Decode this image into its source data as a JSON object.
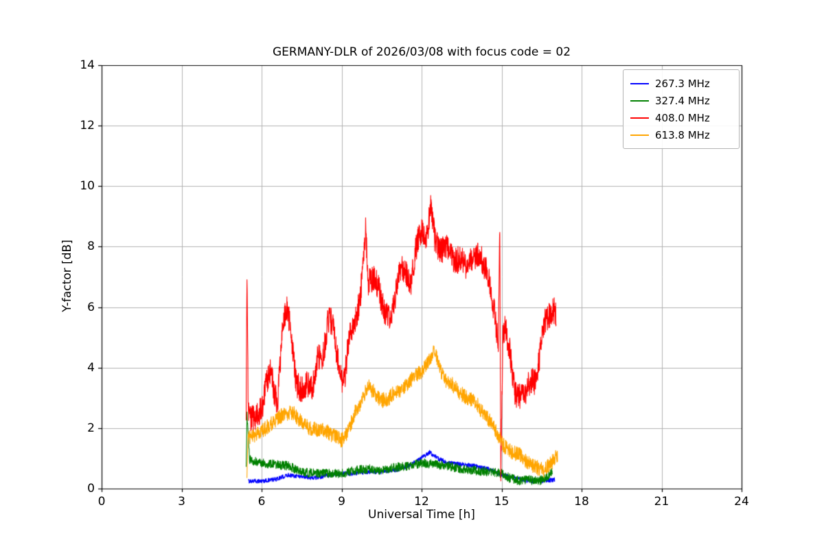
{
  "chart_data": {
    "type": "line",
    "title": "GERMANY-DLR of 2026/03/08 with focus code = 02",
    "xlabel": "Universal Time [h]",
    "ylabel": "Y-factor [dB]",
    "xlim": [
      0,
      24
    ],
    "ylim": [
      0,
      14
    ],
    "xticks": [
      0,
      3,
      6,
      9,
      12,
      15,
      18,
      21,
      24
    ],
    "yticks": [
      0,
      2,
      4,
      6,
      8,
      10,
      12,
      14
    ],
    "grid": true,
    "grid_color": "#b0b0b0",
    "legend_position": "upper right",
    "series": [
      {
        "name": "267.3 MHz",
        "color": "#0000ff",
        "noise": 0.07,
        "points": [
          [
            5.5,
            0.25
          ],
          [
            6,
            0.25
          ],
          [
            6.5,
            0.3
          ],
          [
            7,
            0.45
          ],
          [
            7.5,
            0.4
          ],
          [
            8,
            0.35
          ],
          [
            8.5,
            0.45
          ],
          [
            9,
            0.5
          ],
          [
            9.5,
            0.5
          ],
          [
            10,
            0.55
          ],
          [
            10.5,
            0.55
          ],
          [
            11,
            0.6
          ],
          [
            11.5,
            0.75
          ],
          [
            11.9,
            0.95
          ],
          [
            12.3,
            1.2
          ],
          [
            12.6,
            1.0
          ],
          [
            13,
            0.85
          ],
          [
            13.5,
            0.8
          ],
          [
            14,
            0.75
          ],
          [
            14.5,
            0.65
          ],
          [
            15,
            0.45
          ],
          [
            15.5,
            0.35
          ],
          [
            16,
            0.25
          ],
          [
            16.5,
            0.25
          ],
          [
            17,
            0.3
          ]
        ]
      },
      {
        "name": "327.4 MHz",
        "color": "#008000",
        "noise": 0.15,
        "points": [
          [
            5.42,
            0.6
          ],
          [
            5.45,
            2.45
          ],
          [
            5.55,
            0.95
          ],
          [
            6,
            0.85
          ],
          [
            6.5,
            0.8
          ],
          [
            7,
            0.75
          ],
          [
            7.5,
            0.55
          ],
          [
            8,
            0.5
          ],
          [
            8.5,
            0.5
          ],
          [
            9,
            0.5
          ],
          [
            9.5,
            0.6
          ],
          [
            10,
            0.65
          ],
          [
            10.5,
            0.6
          ],
          [
            11,
            0.7
          ],
          [
            11.5,
            0.75
          ],
          [
            12,
            0.85
          ],
          [
            12.5,
            0.8
          ],
          [
            13,
            0.75
          ],
          [
            13.5,
            0.65
          ],
          [
            14,
            0.6
          ],
          [
            14.5,
            0.55
          ],
          [
            15,
            0.5
          ],
          [
            15.3,
            0.35
          ],
          [
            15.7,
            0.25
          ],
          [
            16,
            0.3
          ],
          [
            16.3,
            0.25
          ],
          [
            16.6,
            0.3
          ],
          [
            16.9,
            0.55
          ]
        ]
      },
      {
        "name": "408.0 MHz",
        "color": "#ff0000",
        "noise": 0.45,
        "points": [
          [
            5.42,
            2.3
          ],
          [
            5.45,
            7.3
          ],
          [
            5.5,
            2.4
          ],
          [
            5.7,
            2.3
          ],
          [
            6,
            2.6
          ],
          [
            6.2,
            3.6
          ],
          [
            6.35,
            3.9
          ],
          [
            6.5,
            3.0
          ],
          [
            6.6,
            2.9
          ],
          [
            6.8,
            5.4
          ],
          [
            6.95,
            6.0
          ],
          [
            7.1,
            5.2
          ],
          [
            7.3,
            3.4
          ],
          [
            7.5,
            3.3
          ],
          [
            7.7,
            3.5
          ],
          [
            7.9,
            3.3
          ],
          [
            8.1,
            4.4
          ],
          [
            8.3,
            4.3
          ],
          [
            8.5,
            5.6
          ],
          [
            8.65,
            5.5
          ],
          [
            8.8,
            4.6
          ],
          [
            9.0,
            3.6
          ],
          [
            9.1,
            3.5
          ],
          [
            9.3,
            5.2
          ],
          [
            9.5,
            5.5
          ],
          [
            9.7,
            6.3
          ],
          [
            9.9,
            8.6
          ],
          [
            10.0,
            6.8
          ],
          [
            10.2,
            7.0
          ],
          [
            10.4,
            6.6
          ],
          [
            10.6,
            5.8
          ],
          [
            10.8,
            5.6
          ],
          [
            11.0,
            6.3
          ],
          [
            11.2,
            7.3
          ],
          [
            11.4,
            7.2
          ],
          [
            11.6,
            6.8
          ],
          [
            11.8,
            8.0
          ],
          [
            12.0,
            8.6
          ],
          [
            12.2,
            8.3
          ],
          [
            12.35,
            9.5
          ],
          [
            12.5,
            8.2
          ],
          [
            12.7,
            7.8
          ],
          [
            12.9,
            8.1
          ],
          [
            13.1,
            7.7
          ],
          [
            13.3,
            7.5
          ],
          [
            13.5,
            7.7
          ],
          [
            13.7,
            7.3
          ],
          [
            13.9,
            7.6
          ],
          [
            14.1,
            7.8
          ],
          [
            14.3,
            7.5
          ],
          [
            14.5,
            7.0
          ],
          [
            14.7,
            6.0
          ],
          [
            14.88,
            4.8
          ],
          [
            14.93,
            8.6
          ],
          [
            14.97,
            0.4
          ],
          [
            15.05,
            5.2
          ],
          [
            15.15,
            5.3
          ],
          [
            15.3,
            4.6
          ],
          [
            15.5,
            3.1
          ],
          [
            15.7,
            3.0
          ],
          [
            15.9,
            3.2
          ],
          [
            16.1,
            3.6
          ],
          [
            16.3,
            3.5
          ],
          [
            16.5,
            4.9
          ],
          [
            16.6,
            5.5
          ],
          [
            16.8,
            5.7
          ],
          [
            16.95,
            5.9
          ],
          [
            17.05,
            5.8
          ]
        ]
      },
      {
        "name": "613.8 MHz",
        "color": "#ffa500",
        "noise": 0.25,
        "points": [
          [
            5.45,
            0.4
          ],
          [
            5.5,
            1.7
          ],
          [
            5.7,
            1.75
          ],
          [
            6,
            1.9
          ],
          [
            6.3,
            2.1
          ],
          [
            6.6,
            2.3
          ],
          [
            6.9,
            2.5
          ],
          [
            7.2,
            2.5
          ],
          [
            7.5,
            2.2
          ],
          [
            7.8,
            2.0
          ],
          [
            8.1,
            1.95
          ],
          [
            8.4,
            1.9
          ],
          [
            8.7,
            1.75
          ],
          [
            9.0,
            1.6
          ],
          [
            9.2,
            1.8
          ],
          [
            9.5,
            2.5
          ],
          [
            9.8,
            3.0
          ],
          [
            10.0,
            3.4
          ],
          [
            10.2,
            3.2
          ],
          [
            10.5,
            2.9
          ],
          [
            10.8,
            3.0
          ],
          [
            11.0,
            3.2
          ],
          [
            11.3,
            3.3
          ],
          [
            11.6,
            3.6
          ],
          [
            11.9,
            3.8
          ],
          [
            12.1,
            4.0
          ],
          [
            12.3,
            4.3
          ],
          [
            12.5,
            4.6
          ],
          [
            12.7,
            3.9
          ],
          [
            12.9,
            3.6
          ],
          [
            13.1,
            3.5
          ],
          [
            13.4,
            3.2
          ],
          [
            13.7,
            3.0
          ],
          [
            14.0,
            2.9
          ],
          [
            14.3,
            2.5
          ],
          [
            14.6,
            2.2
          ],
          [
            14.9,
            1.7
          ],
          [
            15.1,
            1.4
          ],
          [
            15.4,
            1.2
          ],
          [
            15.7,
            1.1
          ],
          [
            16.0,
            0.85
          ],
          [
            16.3,
            0.7
          ],
          [
            16.6,
            0.6
          ],
          [
            16.8,
            0.8
          ],
          [
            17.0,
            1.0
          ],
          [
            17.1,
            1.1
          ]
        ]
      }
    ]
  }
}
